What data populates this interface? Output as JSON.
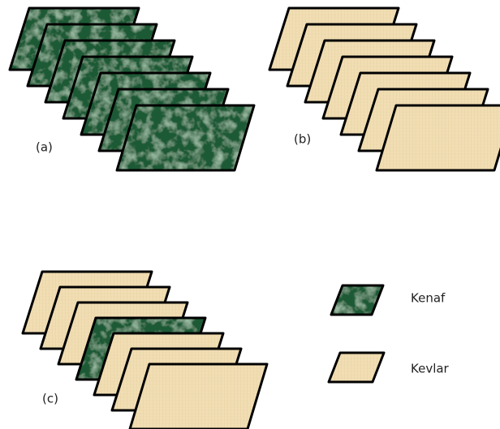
{
  "panels": [
    {
      "label": "(a)"
    },
    {
      "label": "(b)"
    },
    {
      "label": "(c)"
    }
  ],
  "legend": [
    {
      "label": "Kenaf"
    },
    {
      "label": "Kevlar"
    }
  ]
}
